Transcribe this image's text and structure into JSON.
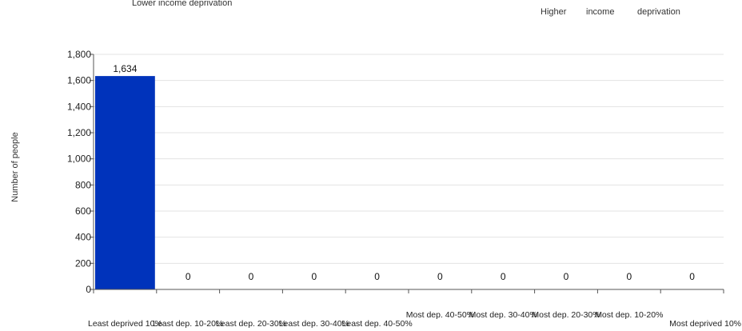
{
  "notes": {
    "left_top": "Lower income deprivation",
    "right_words": [
      "Higher",
      "income",
      "deprivation"
    ]
  },
  "chart_data": {
    "type": "bar",
    "title": "",
    "xlabel": "",
    "ylabel": "Number of people",
    "ylim": [
      0,
      1800
    ],
    "yticks": [
      0,
      200,
      400,
      600,
      800,
      1000,
      1200,
      1400,
      1600,
      1800
    ],
    "ytick_labels": [
      "0",
      "200",
      "400",
      "600",
      "800",
      "1,000",
      "1,200",
      "1,400",
      "1,600",
      "1,800"
    ],
    "grid": true,
    "bar_color": "#0033bb",
    "categories": [
      "Least deprived 10%",
      "Least dep. 10-20%",
      "Least dep. 20-30%",
      "Least dep. 30-40%",
      "Least dep. 40-50%",
      "Most dep. 40-50%",
      "Most dep. 30-40%",
      "Most dep. 20-30%",
      "Most dep. 10-20%",
      "Most deprived 10%"
    ],
    "values": [
      1634,
      0,
      0,
      0,
      0,
      0,
      0,
      0,
      0,
      0
    ],
    "value_labels": [
      "1,634",
      "0",
      "0",
      "0",
      "0",
      "0",
      "0",
      "0",
      "0",
      "0"
    ]
  }
}
